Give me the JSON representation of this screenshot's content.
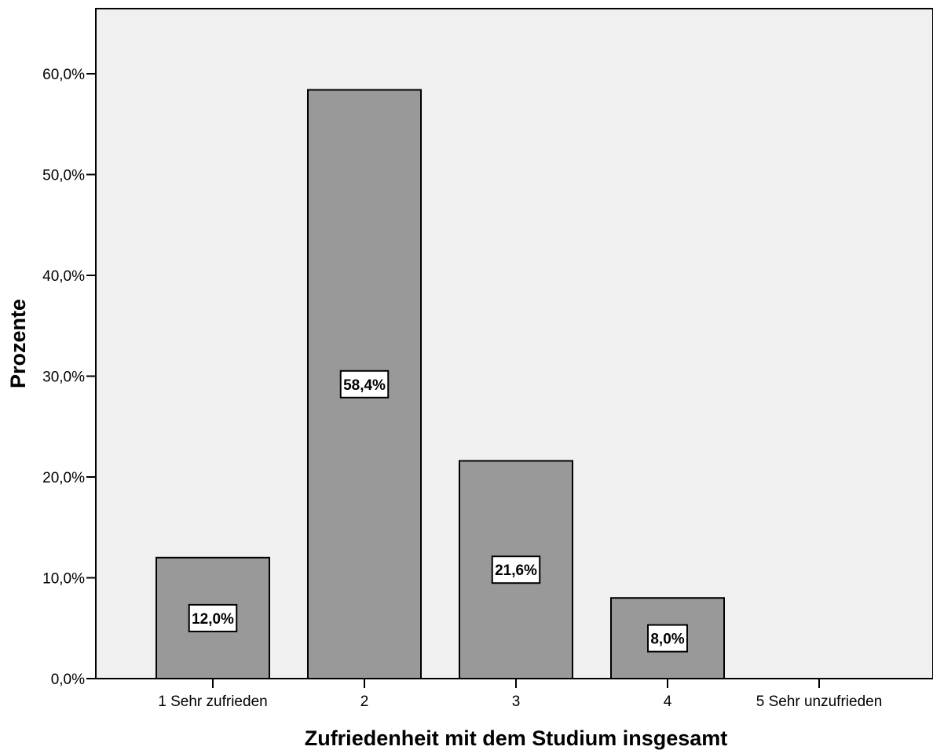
{
  "chart_data": {
    "type": "bar",
    "categories": [
      "1 Sehr zufrieden",
      "2",
      "3",
      "4",
      "5 Sehr unzufrieden"
    ],
    "values": [
      12.0,
      58.4,
      21.6,
      8.0,
      0.0
    ],
    "data_labels": [
      "12,0%",
      "58,4%",
      "21,6%",
      "8,0%",
      ""
    ],
    "xlabel": "Zufriedenheit mit dem Studium insgesamt",
    "ylabel": "Prozente",
    "ylim": [
      0,
      66.5
    ],
    "yticks": [
      0,
      10,
      20,
      30,
      40,
      50,
      60
    ],
    "ytick_labels": [
      "0,0%",
      "10,0%",
      "20,0%",
      "30,0%",
      "40,0%",
      "50,0%",
      "60,0%"
    ],
    "grid": false,
    "colors": {
      "plot_background": "#f0f0f0",
      "bar_fill": "#999999",
      "bar_stroke": "#000000",
      "label_box": "#ffffff"
    }
  }
}
